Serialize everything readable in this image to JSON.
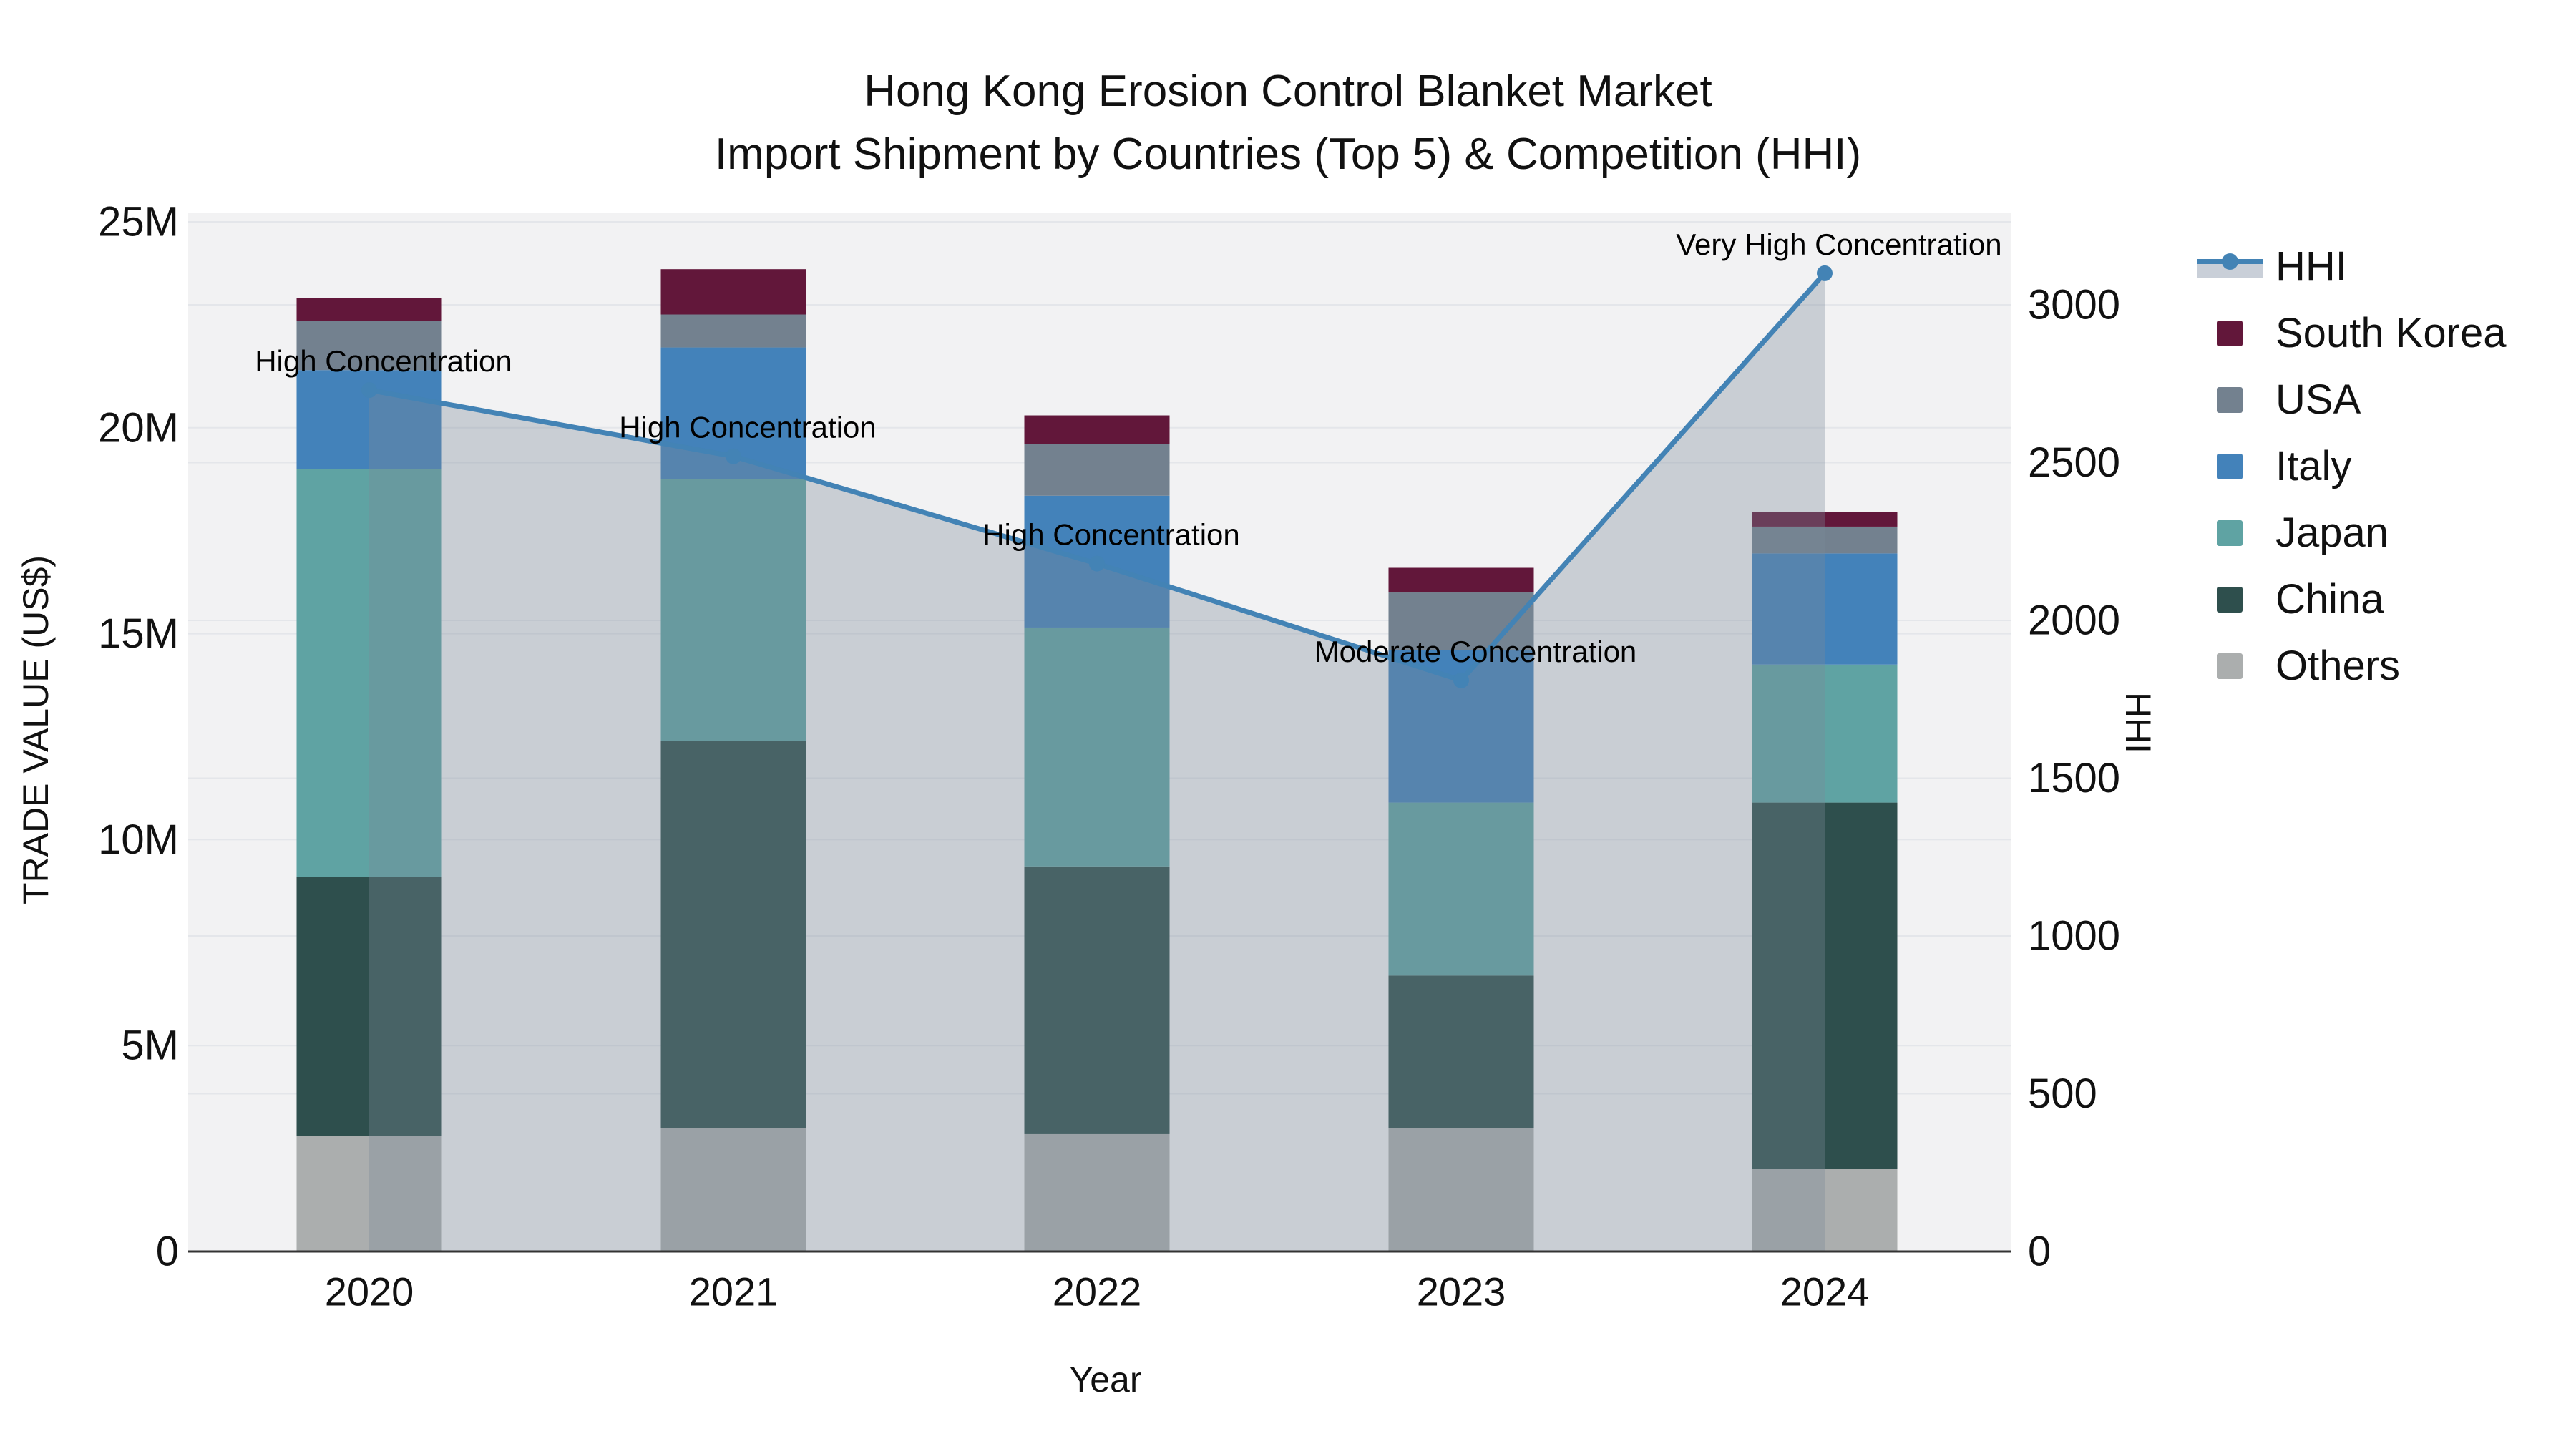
{
  "figure": {
    "title_line1": "Hong Kong Erosion Control Blanket Market",
    "title_line2": "Import Shipment by Countries (Top 5) & Competition (HHI)"
  },
  "chart_data": {
    "type": "combo-stacked-bar-line",
    "title": "Hong Kong Erosion Control Blanket Market — Import Shipment by Countries (Top 5) & Competition (HHI)",
    "xlabel": "Year",
    "ylabel_left": "TRADE VALUE (US$)",
    "ylabel_right": "HHI",
    "categories": [
      "2020",
      "2021",
      "2022",
      "2023",
      "2024"
    ],
    "y_left_ticks": [
      "0",
      "5M",
      "10M",
      "15M",
      "20M",
      "25M"
    ],
    "y_left_tick_values_musd": [
      0,
      5,
      10,
      15,
      20,
      25
    ],
    "y_left_range_musd": [
      0,
      25
    ],
    "y_right_ticks": [
      "0",
      "500",
      "1000",
      "1500",
      "2000",
      "2500",
      "3000"
    ],
    "y_right_tick_values": [
      0,
      500,
      1000,
      1500,
      2000,
      2500,
      3000
    ],
    "grid": true,
    "legend_position": "right",
    "legend_order": [
      "HHI",
      "South Korea",
      "USA",
      "Italy",
      "Japan",
      "China",
      "Others"
    ],
    "bar_unit": "million US$",
    "bar_series_bottom_to_top": [
      {
        "name": "Others",
        "color": "#ABAEAE",
        "values_musd": [
          2.8,
          3.0,
          2.85,
          3.0,
          2.0
        ]
      },
      {
        "name": "China",
        "color": "#2E4F4D",
        "values_musd": [
          6.3,
          9.4,
          6.5,
          3.7,
          8.9
        ]
      },
      {
        "name": "Japan",
        "color": "#5FA3A3",
        "values_musd": [
          9.9,
          6.35,
          5.8,
          4.2,
          3.35
        ]
      },
      {
        "name": "Italy",
        "color": "#4382BA",
        "values_musd": [
          2.4,
          3.2,
          3.2,
          3.7,
          2.7
        ]
      },
      {
        "name": "USA",
        "color": "#73818F",
        "values_musd": [
          1.2,
          0.8,
          1.25,
          1.4,
          0.65
        ]
      },
      {
        "name": "South Korea",
        "color": "#62173A",
        "values_musd": [
          0.55,
          1.1,
          0.7,
          0.6,
          0.35
        ]
      }
    ],
    "line_series": {
      "name": "HHI",
      "axis": "right",
      "color": "#4383B5",
      "area_fill": "rgba(122,137,151,0.34)",
      "values": [
        2730,
        2520,
        2180,
        1810,
        3100
      ]
    },
    "annotations": [
      {
        "x": "2020",
        "text": "High Concentration"
      },
      {
        "x": "2021",
        "text": "High Concentration"
      },
      {
        "x": "2022",
        "text": "High Concentration"
      },
      {
        "x": "2023",
        "text": "Moderate Concentration"
      },
      {
        "x": "2024",
        "text": "Very High Concentration"
      }
    ]
  },
  "colors": {
    "figure_bg": "#FFFFFF",
    "plot_bg": "#F2F2F3",
    "grid_line": "#E4E6EA",
    "axis_line": "#333333",
    "text": "#111111",
    "annotation_text": "#000000",
    "legend_area_band": "#C9CFD8"
  }
}
